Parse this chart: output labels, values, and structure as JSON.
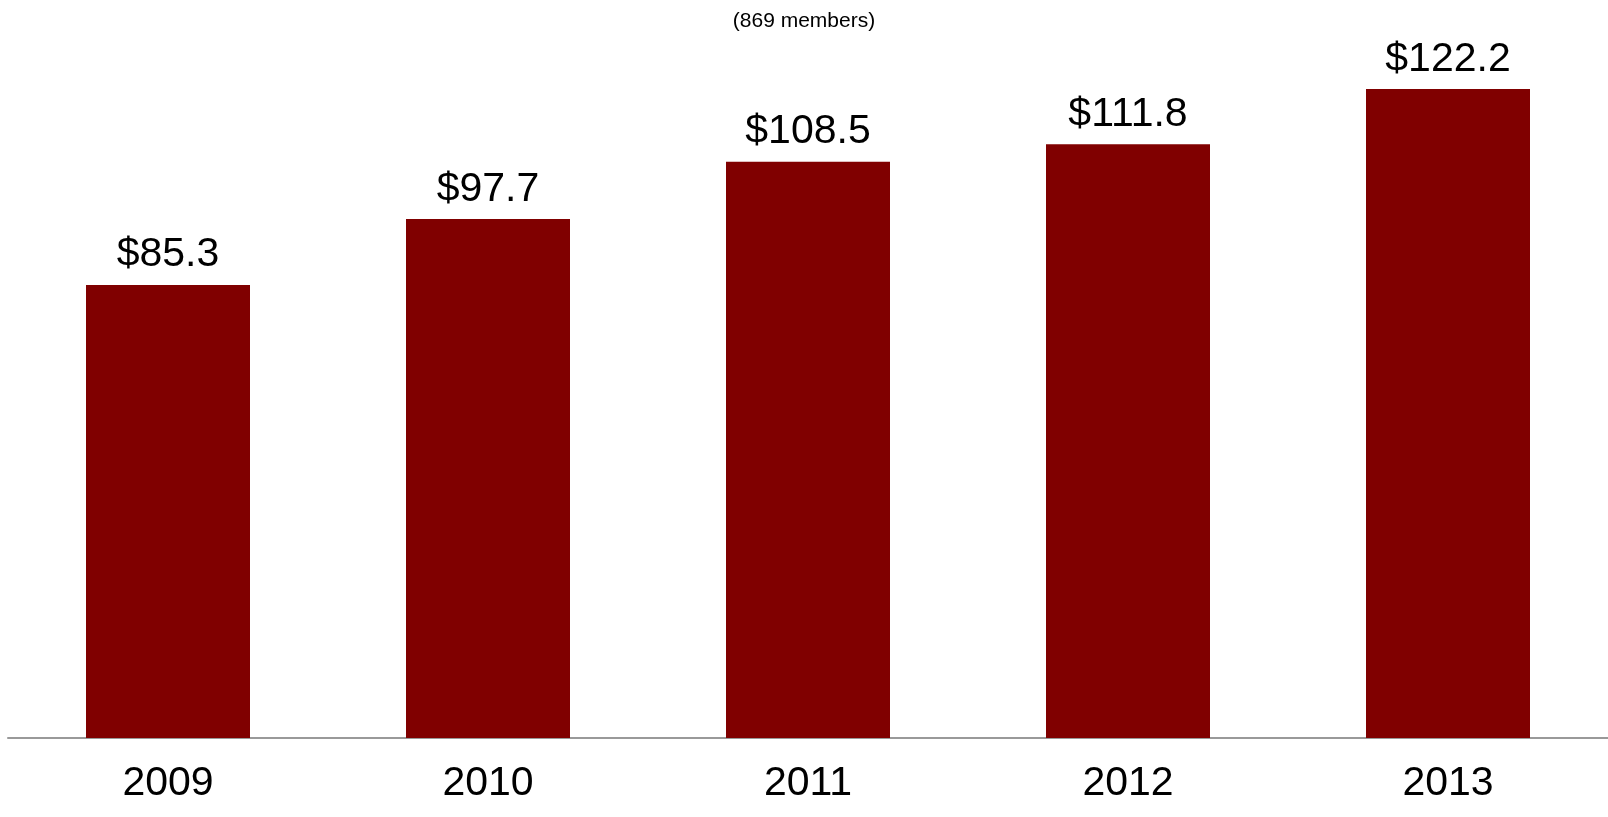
{
  "chart_data": {
    "type": "bar",
    "subtitle": "(869 members)",
    "categories": [
      "2009",
      "2010",
      "2011",
      "2012",
      "2013"
    ],
    "values": [
      85.3,
      97.7,
      108.5,
      111.8,
      122.2
    ],
    "value_labels": [
      "$85.3",
      "$97.7",
      "$108.5",
      "$111.8",
      "$122.2"
    ],
    "color": "#800000"
  }
}
